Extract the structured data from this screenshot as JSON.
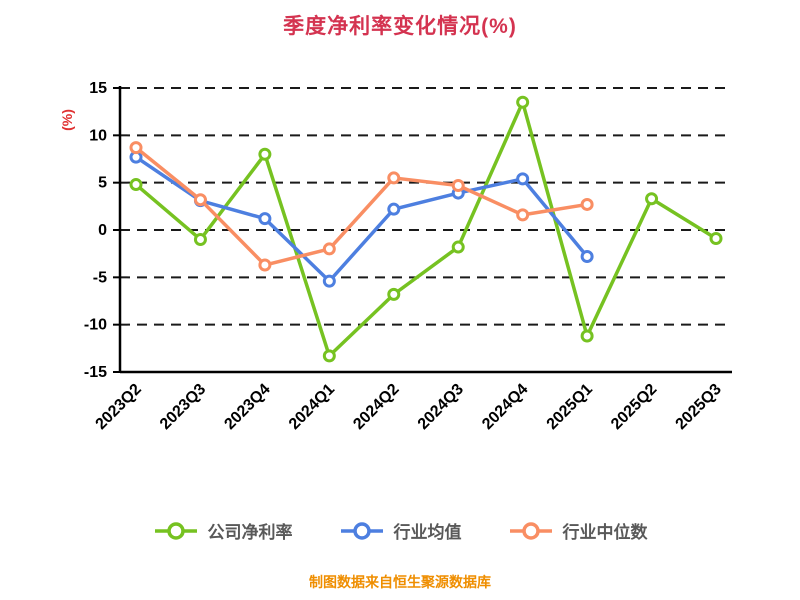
{
  "title": "季度净利率变化情况(%)",
  "footer": {
    "text": "制图数据来自恒生聚源数据库",
    "color": "#ef8e00"
  },
  "colors": {
    "title": "#d43350",
    "axis": "#000000",
    "grid": "#1a1a1a",
    "tick_text": "#000000",
    "legend_text": "#595959"
  },
  "chart_data": {
    "type": "line",
    "title": "季度净利率变化情况(%)",
    "ylabel": "(%)",
    "xlabel": "",
    "ylim": [
      -15,
      15
    ],
    "yticks": [
      15,
      10,
      5,
      0,
      -5,
      -10,
      -15
    ],
    "grid": "dashed-horizontal",
    "legend_position": "bottom",
    "categories": [
      "2023Q2",
      "2023Q3",
      "2023Q4",
      "2024Q1",
      "2024Q2",
      "2024Q3",
      "2024Q4",
      "2025Q1",
      "2025Q2",
      "2025Q3"
    ],
    "series": [
      {
        "name": "公司净利率",
        "color": "#76c221",
        "values": [
          4.8,
          -1.0,
          8.0,
          -13.3,
          -6.8,
          -1.8,
          13.5,
          -11.2,
          3.3,
          -0.9
        ]
      },
      {
        "name": "行业均值",
        "color": "#4d7fe0",
        "values": [
          7.7,
          3.1,
          1.2,
          -5.4,
          2.2,
          3.9,
          5.4,
          -2.8,
          null,
          null
        ]
      },
      {
        "name": "行业中位数",
        "color": "#f98e63",
        "values": [
          8.7,
          3.2,
          -3.7,
          -2.0,
          5.5,
          4.7,
          1.6,
          2.7,
          null,
          null
        ]
      }
    ]
  }
}
